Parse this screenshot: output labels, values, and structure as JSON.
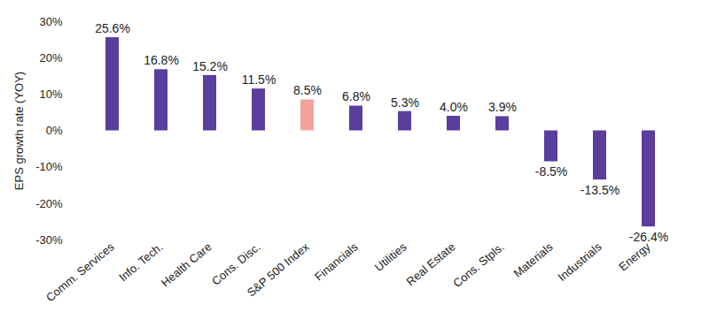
{
  "chart_data": {
    "type": "bar",
    "y_label": "EPS growth rate (YOY)",
    "categories": [
      "Comm. Services",
      "Info. Tech.",
      "Health Care",
      "Cons. Disc.",
      "S&P 500 Index",
      "Financials",
      "Utilities",
      "Real Estate",
      "Cons. Stpls.",
      "Materials",
      "Industrials",
      "Energy"
    ],
    "values": [
      25.6,
      16.8,
      15.2,
      11.5,
      8.5,
      6.8,
      5.3,
      4.0,
      3.9,
      -8.5,
      -13.5,
      -26.4
    ],
    "value_labels": [
      "25.6%",
      "16.8%",
      "15.2%",
      "11.5%",
      "8.5%",
      "6.8%",
      "5.3%",
      "4.0%",
      "3.9%",
      "-8.5%",
      "-13.5%",
      "-26.4%"
    ],
    "colors": [
      "#5b3d9e",
      "#5b3d9e",
      "#5b3d9e",
      "#5b3d9e",
      "#f3a39c",
      "#5b3d9e",
      "#5b3d9e",
      "#5b3d9e",
      "#5b3d9e",
      "#5b3d9e",
      "#5b3d9e",
      "#5b3d9e"
    ],
    "ylim": [
      -30,
      30
    ],
    "yticks": [
      {
        "value": -30,
        "label": "-30%"
      },
      {
        "value": -20,
        "label": "-20%"
      },
      {
        "value": -10,
        "label": "-10%"
      },
      {
        "value": 0,
        "label": "0%"
      },
      {
        "value": 10,
        "label": "10%"
      },
      {
        "value": 20,
        "label": "20%"
      },
      {
        "value": 30,
        "label": "30%"
      }
    ],
    "grid": false,
    "data_labels": true
  }
}
